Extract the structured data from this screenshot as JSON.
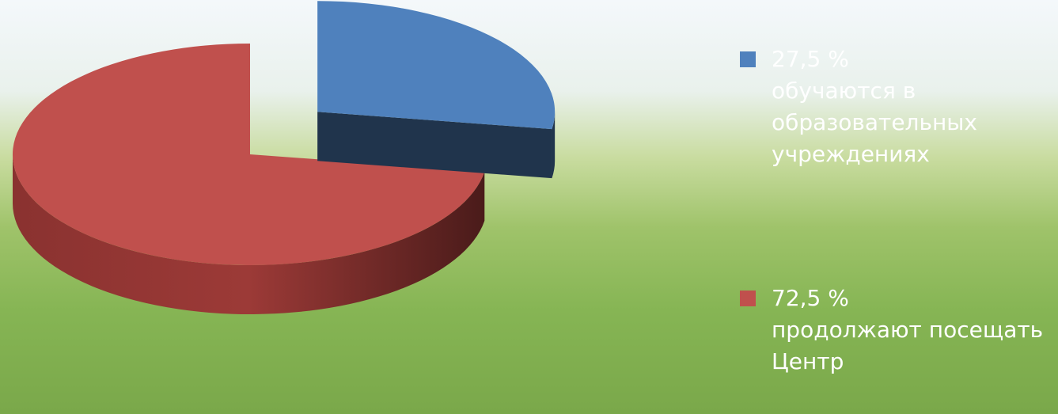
{
  "chart_data": {
    "type": "pie",
    "categories": [
      "обучаются в образовательных учреждениях",
      "продолжают посещать Центр"
    ],
    "values": [
      27.5,
      72.5
    ],
    "value_labels": [
      "27,5 %",
      "72,5 %"
    ],
    "colors": [
      "#4f81bd",
      "#c0504d"
    ],
    "exploded": [
      true,
      false
    ]
  }
}
